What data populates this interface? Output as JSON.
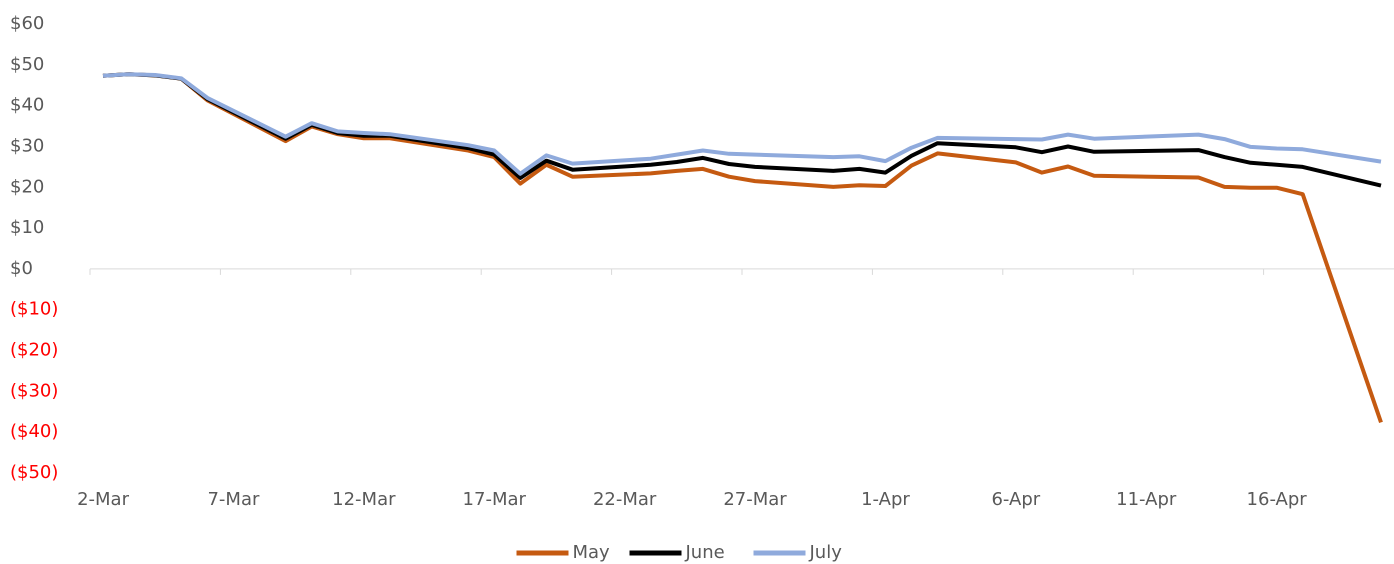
{
  "chart_data": {
    "type": "line",
    "x": [
      "2-Mar",
      "3-Mar",
      "4-Mar",
      "5-Mar",
      "6-Mar",
      "9-Mar",
      "10-Mar",
      "11-Mar",
      "12-Mar",
      "13-Mar",
      "16-Mar",
      "17-Mar",
      "18-Mar",
      "19-Mar",
      "20-Mar",
      "23-Mar",
      "24-Mar",
      "25-Mar",
      "26-Mar",
      "27-Mar",
      "30-Mar",
      "31-Mar",
      "1-Apr",
      "2-Apr",
      "3-Apr",
      "6-Apr",
      "7-Apr",
      "8-Apr",
      "9-Apr",
      "13-Apr",
      "14-Apr",
      "15-Apr",
      "16-Apr",
      "17-Apr",
      "20-Apr"
    ],
    "series": [
      {
        "name": "May",
        "color": "#c55a11",
        "values": [
          47.3,
          47.7,
          47.4,
          46.6,
          41.3,
          31.3,
          34.9,
          33.0,
          32.0,
          32.0,
          29.0,
          27.4,
          20.9,
          25.5,
          22.6,
          23.4,
          24.0,
          24.5,
          22.6,
          21.5,
          20.1,
          20.5,
          20.3,
          25.3,
          28.3,
          26.1,
          23.6,
          25.1,
          22.8,
          22.4,
          20.1,
          19.9,
          19.9,
          18.3,
          -37.6
        ]
      },
      {
        "name": "June",
        "color": "#000000",
        "values": [
          47.3,
          47.7,
          47.4,
          46.6,
          41.6,
          31.9,
          35.3,
          33.3,
          32.6,
          32.6,
          29.6,
          28.0,
          22.3,
          26.5,
          24.3,
          25.5,
          26.2,
          27.2,
          25.7,
          25.0,
          24.0,
          24.5,
          23.6,
          27.7,
          30.8,
          29.8,
          28.6,
          30.0,
          28.7,
          29.1,
          27.4,
          26.0,
          25.5,
          25.0,
          20.4
        ]
      },
      {
        "name": "July",
        "color": "#8faadc",
        "values": [
          47.3,
          47.7,
          47.5,
          46.7,
          41.9,
          32.4,
          35.7,
          33.7,
          33.3,
          33.0,
          30.3,
          29.0,
          23.3,
          27.8,
          25.8,
          27.0,
          28.0,
          29.0,
          28.2,
          28.0,
          27.4,
          27.6,
          26.4,
          29.7,
          32.1,
          31.8,
          31.7,
          32.9,
          31.9,
          32.9,
          31.8,
          29.9,
          29.5,
          29.3,
          26.3
        ]
      }
    ],
    "xlim": [
      "2-Mar",
      "20-Apr"
    ],
    "xticks": [
      "2-Mar",
      "7-Mar",
      "12-Mar",
      "17-Mar",
      "22-Mar",
      "27-Mar",
      "1-Apr",
      "6-Apr",
      "11-Apr",
      "16-Apr"
    ],
    "ylim": [
      -50,
      60
    ],
    "yticks": [
      {
        "value": -50,
        "label": "($50)"
      },
      {
        "value": -40,
        "label": "($40)"
      },
      {
        "value": -30,
        "label": "($30)"
      },
      {
        "value": -20,
        "label": "($20)"
      },
      {
        "value": -10,
        "label": "($10)"
      },
      {
        "value": 0,
        "label": "$0"
      },
      {
        "value": 10,
        "label": "$10"
      },
      {
        "value": 20,
        "label": "$20"
      },
      {
        "value": 30,
        "label": "$30"
      },
      {
        "value": 40,
        "label": "$40"
      },
      {
        "value": 50,
        "label": "$50"
      },
      {
        "value": 60,
        "label": "$60"
      }
    ],
    "negative_tick_color": "#ff0000",
    "legend": "bottom"
  }
}
